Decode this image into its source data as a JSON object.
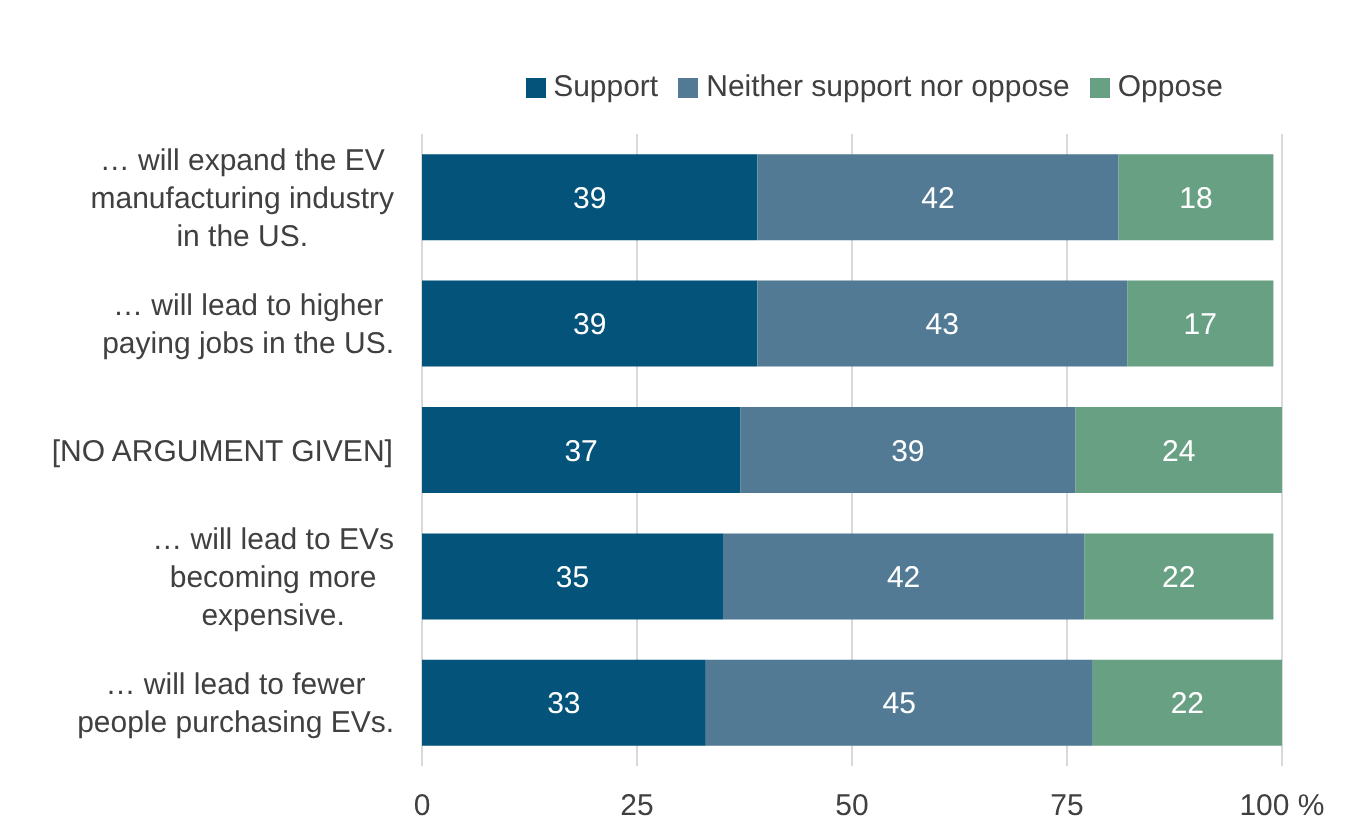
{
  "chart_data": {
    "type": "bar",
    "orientation": "horizontal",
    "stacked": true,
    "categories": [
      "… will expand the EV manufacturing industry in the US.",
      "… will lead to higher paying jobs in the US.",
      "[NO ARGUMENT GIVEN]",
      "… will lead to EVs becoming more expensive.",
      "… will lead to fewer people purchasing EVs."
    ],
    "series": [
      {
        "name": "Support",
        "color": "#04537a",
        "values": [
          39,
          39,
          37,
          35,
          33
        ]
      },
      {
        "name": "Neither support nor oppose",
        "color": "#527a94",
        "values": [
          42,
          43,
          39,
          42,
          45
        ]
      },
      {
        "name": "Oppose",
        "color": "#68a083",
        "values": [
          18,
          17,
          24,
          22,
          22
        ]
      }
    ],
    "xlim": [
      0,
      100
    ],
    "xticks": [
      0,
      25,
      50,
      75,
      {
        "value": 100,
        "label": "100 %"
      }
    ],
    "grid": "x",
    "legend": "top",
    "data_labels": true
  }
}
